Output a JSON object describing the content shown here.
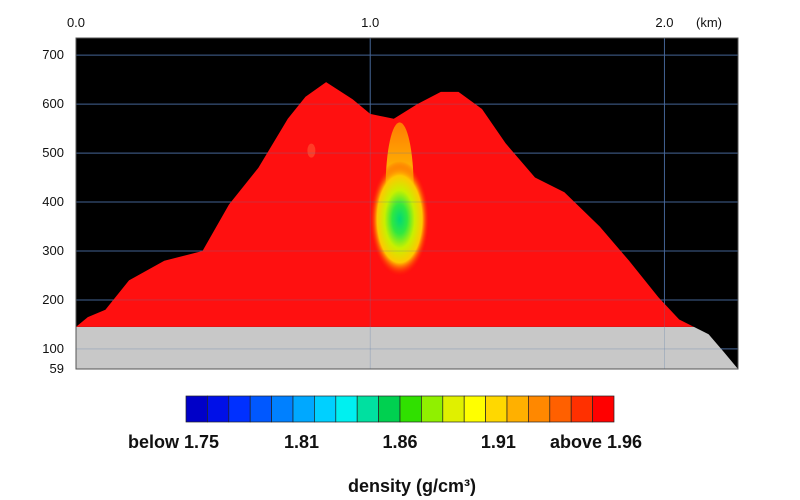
{
  "chart_data": {
    "type": "heatmap",
    "title": "",
    "x_axis": {
      "ticks": [
        {
          "value": 0.0,
          "label": "0.0"
        },
        {
          "value": 1.0,
          "label": "1.0"
        },
        {
          "value": 2.0,
          "label": "2.0"
        }
      ],
      "unit": "(km)",
      "range": [
        0.0,
        2.25
      ]
    },
    "y_axis": {
      "ticks": [
        {
          "value": 59,
          "label": "59"
        },
        {
          "value": 100,
          "label": "100"
        },
        {
          "value": 200,
          "label": "200"
        },
        {
          "value": 300,
          "label": "300"
        },
        {
          "value": 400,
          "label": "400"
        },
        {
          "value": 500,
          "label": "500"
        },
        {
          "value": 600,
          "label": "600"
        },
        {
          "value": 700,
          "label": "700"
        }
      ],
      "range": [
        59,
        735
      ]
    },
    "grid": true,
    "profile": {
      "summit_points": [
        {
          "x": 0.0,
          "y": 145
        },
        {
          "x": 0.04,
          "y": 165
        },
        {
          "x": 0.1,
          "y": 180
        },
        {
          "x": 0.18,
          "y": 240
        },
        {
          "x": 0.3,
          "y": 280
        },
        {
          "x": 0.43,
          "y": 300
        },
        {
          "x": 0.52,
          "y": 395
        },
        {
          "x": 0.62,
          "y": 470
        },
        {
          "x": 0.72,
          "y": 570
        },
        {
          "x": 0.78,
          "y": 615
        },
        {
          "x": 0.85,
          "y": 645
        },
        {
          "x": 0.94,
          "y": 610
        },
        {
          "x": 1.0,
          "y": 580
        },
        {
          "x": 1.08,
          "y": 570
        },
        {
          "x": 1.16,
          "y": 600
        },
        {
          "x": 1.24,
          "y": 625
        },
        {
          "x": 1.3,
          "y": 625
        },
        {
          "x": 1.38,
          "y": 590
        },
        {
          "x": 1.46,
          "y": 520
        },
        {
          "x": 1.56,
          "y": 450
        },
        {
          "x": 1.66,
          "y": 420
        },
        {
          "x": 1.78,
          "y": 350
        },
        {
          "x": 1.88,
          "y": 280
        },
        {
          "x": 1.98,
          "y": 205
        },
        {
          "x": 2.05,
          "y": 160
        },
        {
          "x": 2.1,
          "y": 145
        }
      ],
      "base_y": 145,
      "bedrock_edge": [
        {
          "x": 2.1,
          "y": 145
        },
        {
          "x": 2.15,
          "y": 130
        },
        {
          "x": 2.2,
          "y": 95
        },
        {
          "x": 2.25,
          "y": 59
        }
      ]
    },
    "colorbar": {
      "colors": [
        "#0000c8",
        "#0010e8",
        "#0030ff",
        "#0058ff",
        "#0080ff",
        "#00a8ff",
        "#00d0ff",
        "#00f0f0",
        "#00e0a0",
        "#00d050",
        "#30e000",
        "#90f000",
        "#e0f000",
        "#ffff00",
        "#ffd800",
        "#ffb000",
        "#ff8800",
        "#ff6000",
        "#ff3000",
        "#ff0000"
      ],
      "labels": [
        {
          "text": "below 1.75",
          "pos": 0.0
        },
        {
          "text": "1.81",
          "pos": 0.27
        },
        {
          "text": "1.86",
          "pos": 0.5
        },
        {
          "text": "1.91",
          "pos": 0.73
        },
        {
          "text": "above 1.96",
          "pos": 1.0
        }
      ],
      "title": "density (g/cm³)"
    },
    "anomaly": {
      "description_value_low": 1.84,
      "center": {
        "x": 1.1,
        "y": 365
      }
    }
  }
}
